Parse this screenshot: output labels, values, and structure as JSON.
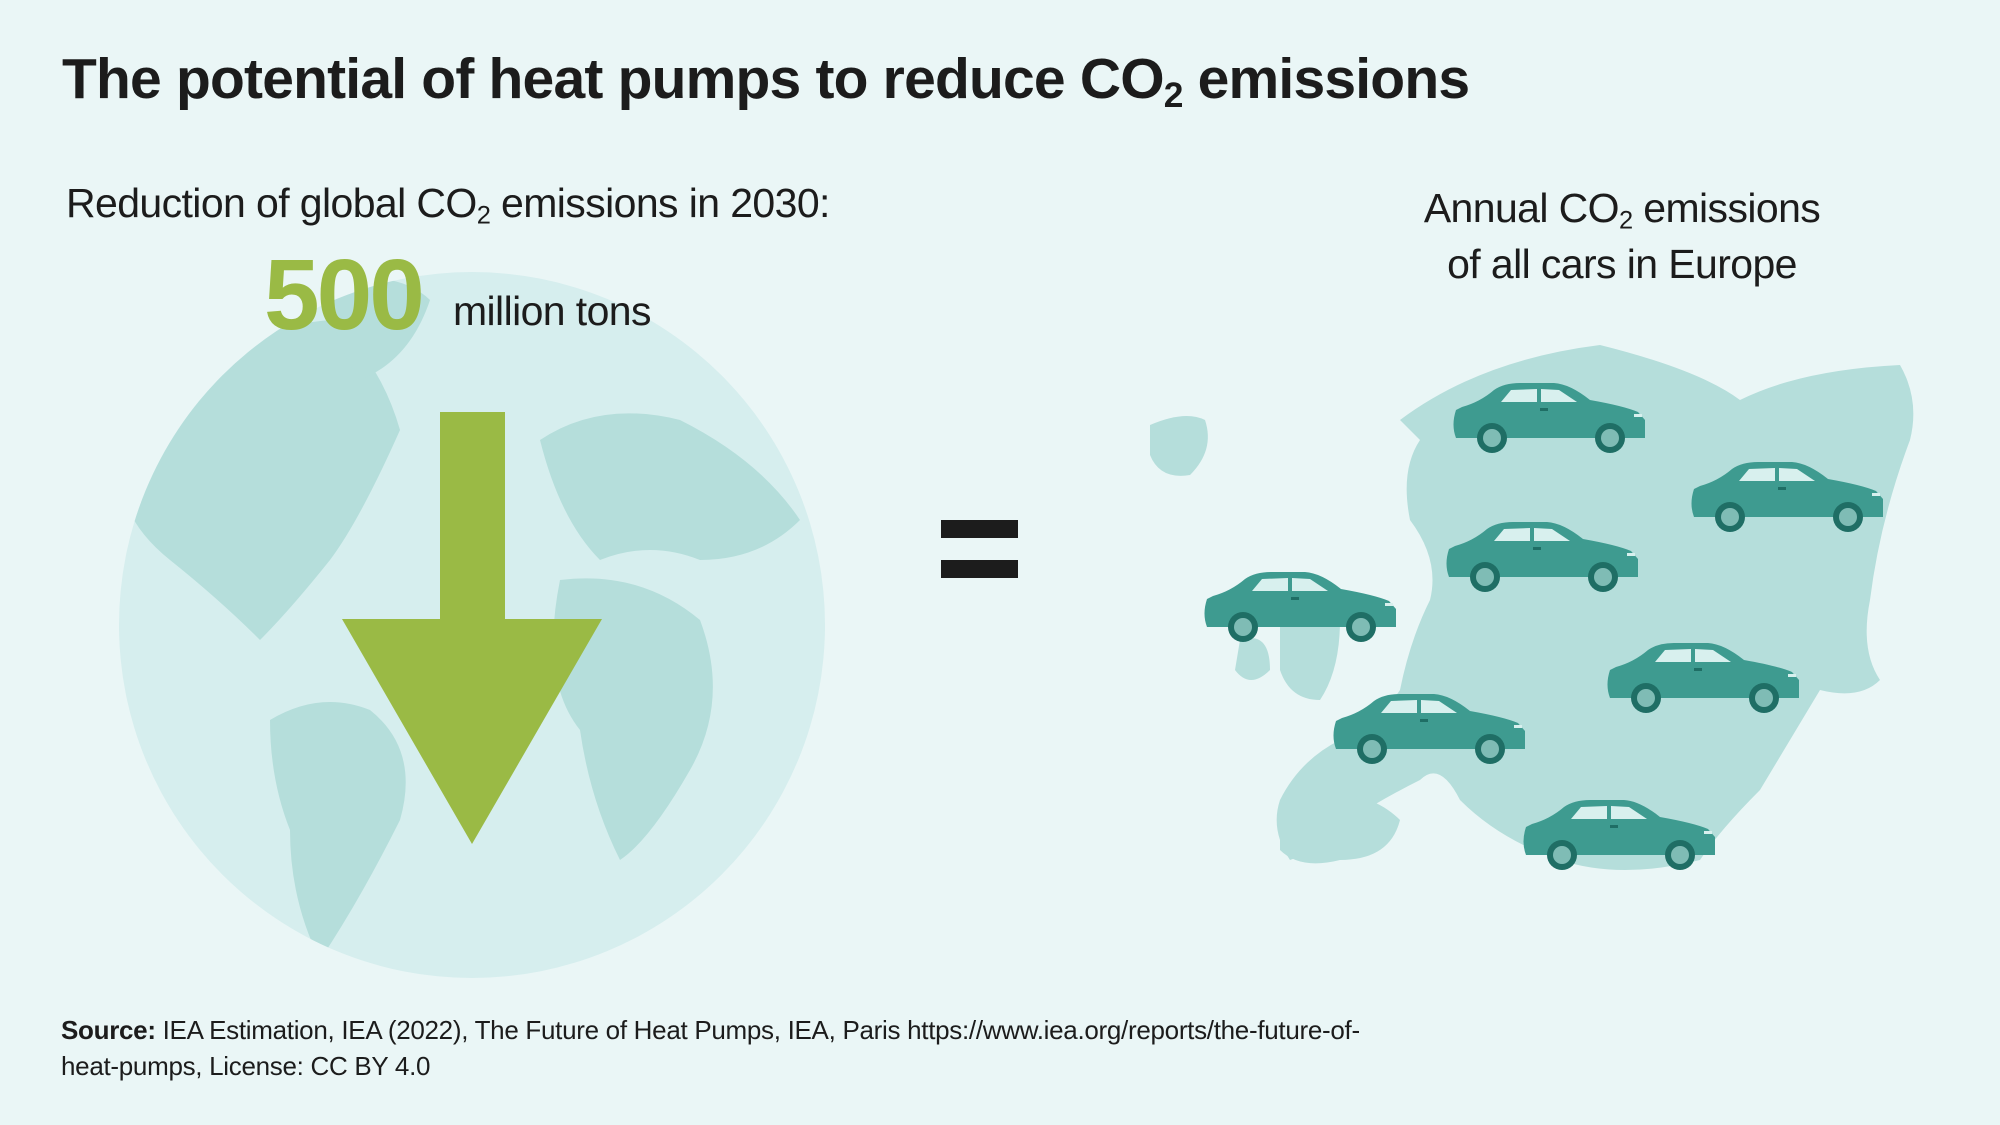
{
  "title": {
    "pre": "The potential of heat pumps to reduce CO",
    "sub": "2",
    "post": " emissions"
  },
  "left": {
    "label_pre": "Reduction of global CO",
    "label_sub": "2",
    "label_post": " emissions in 2030:",
    "value": "500",
    "unit": "million tons",
    "icon": "down-arrow-icon"
  },
  "equals_icon": "equals-icon",
  "right": {
    "line1_pre": "Annual CO",
    "line1_sub": "2",
    "line1_post": " emissions",
    "line2": "of all cars in Europe",
    "car_icon_count": 7
  },
  "source": {
    "label": "Source:",
    "text": " IEA Estimation, IEA (2022), The Future of Heat Pumps, IEA, Paris https://www.iea.org/reports/the-future-of-heat-pumps, License: CC BY 4.0"
  },
  "colors": {
    "background": "#eaf6f6",
    "accent_green": "#9aba45",
    "globe": "#d6eeee",
    "land": "#b5dedb",
    "car_body": "#3e9b90",
    "car_dark": "#1f6e65",
    "text": "#1c1c1c"
  }
}
